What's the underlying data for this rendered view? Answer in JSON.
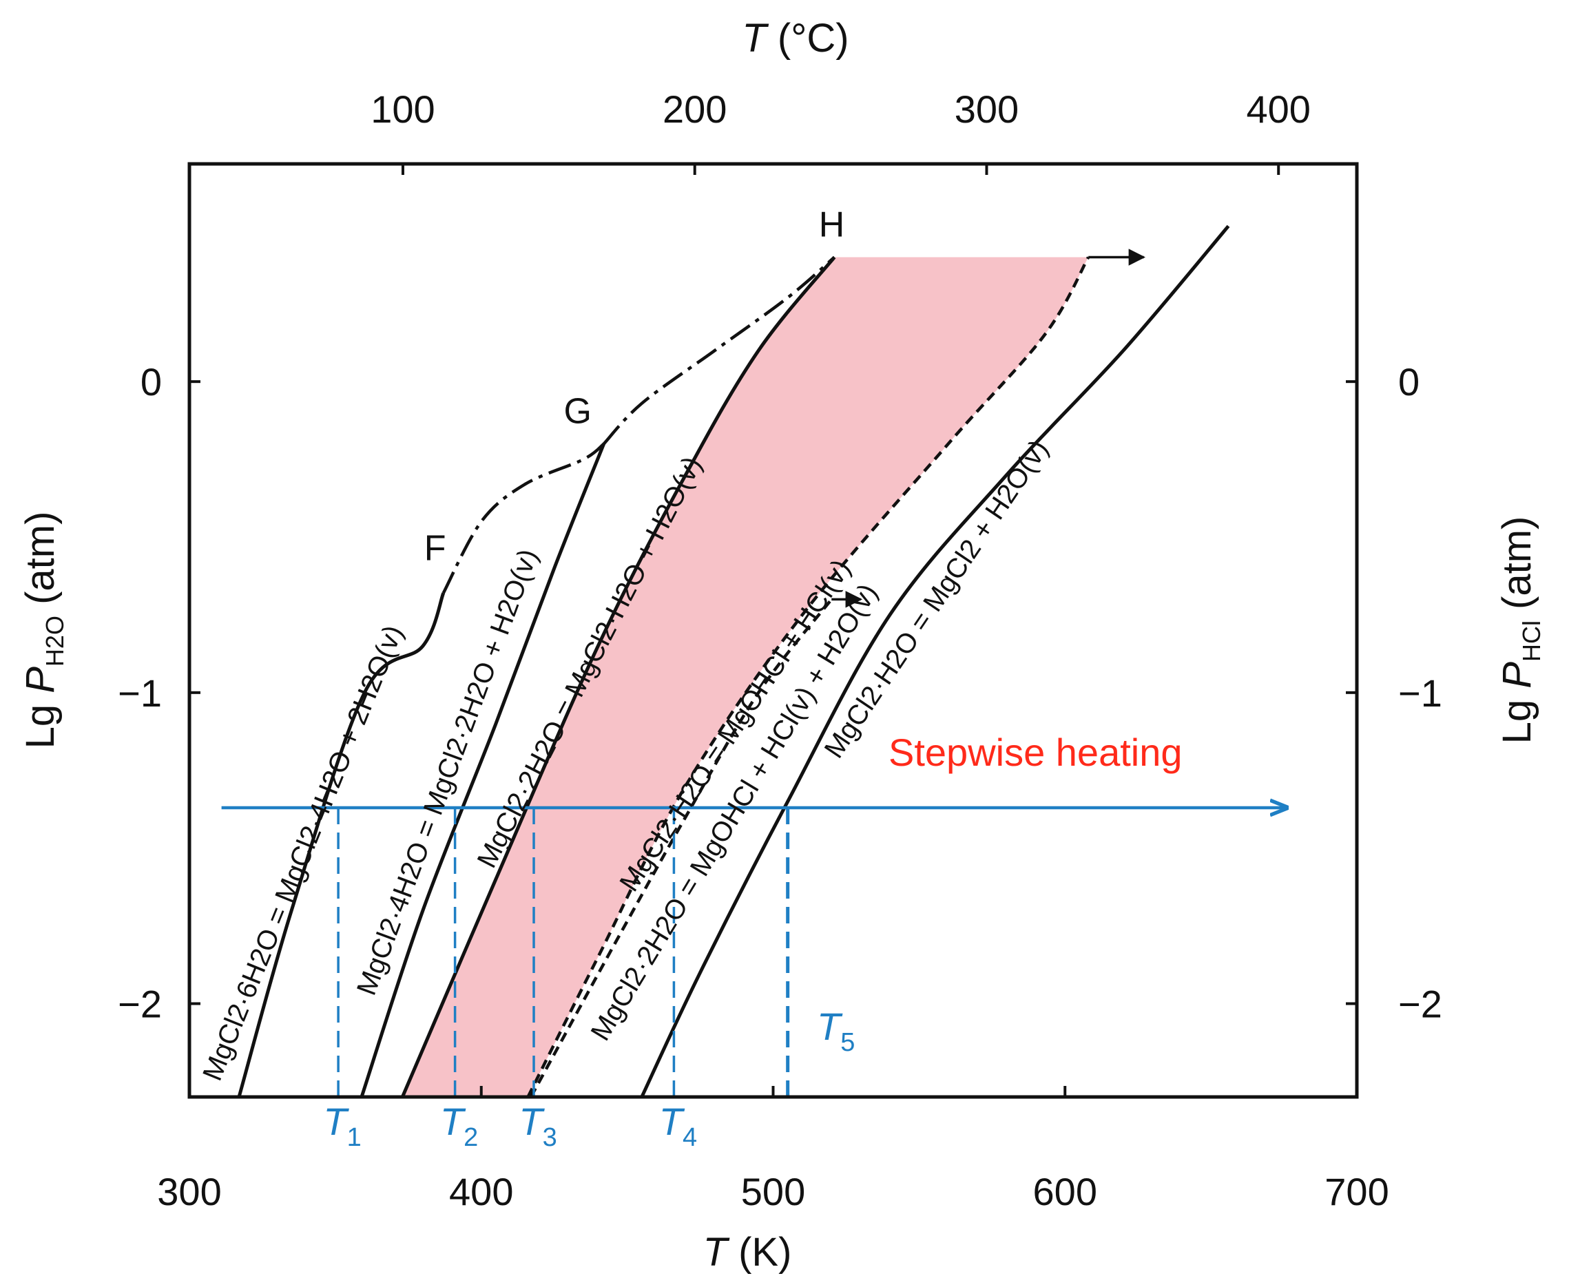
{
  "chart_data": {
    "type": "line",
    "x_bottom": {
      "label_var": "T",
      "label_unit": " (K)",
      "range": [
        300,
        700
      ],
      "ticks": [
        300,
        400,
        500,
        600,
        700
      ]
    },
    "x_top": {
      "label_var": "T",
      "label_unit": " (°C)",
      "ticks": [
        100,
        200,
        300,
        400
      ]
    },
    "y_left": {
      "label_prefix": "Lg ",
      "label_var": "P",
      "label_sub": "H2O",
      "label_unit": " (atm)",
      "range": [
        -2.3,
        0.7
      ],
      "ticks": [
        0,
        -1,
        -2
      ],
      "tick_labels": [
        "0",
        "−1",
        "−2"
      ]
    },
    "y_right": {
      "label_prefix": "Lg ",
      "label_var": "P",
      "label_sub": "HCl",
      "label_unit": " (atm)",
      "ticks": [
        0,
        -1,
        -2
      ],
      "tick_labels": [
        "0",
        "−1",
        "−2"
      ]
    },
    "series": [
      {
        "name": "MgCl2·6H2O = MgCl2·4H2O + 2H2O(v)",
        "style": "solid",
        "points": [
          [
            317,
            -2.3
          ],
          [
            335,
            -1.7
          ],
          [
            360,
            -1.0
          ],
          [
            380,
            -0.85
          ],
          [
            387,
            -0.68
          ]
        ]
      },
      {
        "name": "MgCl2·4H2O = MgCl2·2H2O + H2O(v)",
        "style": "solid",
        "points": [
          [
            359,
            -2.3
          ],
          [
            380,
            -1.7
          ],
          [
            405,
            -1.1
          ],
          [
            425,
            -0.6
          ],
          [
            442,
            -0.2
          ]
        ]
      },
      {
        "name": "MgCl2·2H2O = MgCl2·H2O + H2O(v)",
        "style": "solid",
        "points": [
          [
            373,
            -2.3
          ],
          [
            405,
            -1.6
          ],
          [
            440,
            -0.85
          ],
          [
            470,
            -0.3
          ],
          [
            495,
            0.1
          ],
          [
            521,
            0.4
          ]
        ]
      },
      {
        "name": "MgCl2·H2O = MgOHCl + HCl(v)",
        "style": "dashed",
        "points": [
          [
            416,
            -2.3
          ],
          [
            440,
            -1.85
          ],
          [
            470,
            -1.3
          ],
          [
            510,
            -0.75
          ],
          [
            560,
            -0.2
          ],
          [
            593,
            0.15
          ],
          [
            608,
            0.4
          ]
        ]
      },
      {
        "name": "MgCl2·2H2O = MgOHCl + HCl(v) + H2O(v)",
        "style": "dashed",
        "points": [
          [
            417,
            -2.3
          ],
          [
            445,
            -1.82
          ],
          [
            470,
            -1.4
          ],
          [
            495,
            -1.0
          ],
          [
            520,
            -0.7
          ]
        ]
      },
      {
        "name": "MgCl2·H2O = MgCl2 + H2O(v)",
        "style": "solid",
        "points": [
          [
            455,
            -2.3
          ],
          [
            475,
            -1.9
          ],
          [
            505,
            -1.35
          ],
          [
            540,
            -0.75
          ],
          [
            580,
            -0.3
          ],
          [
            620,
            0.1
          ],
          [
            656,
            0.5
          ]
        ]
      },
      {
        "name": "F-G boundary",
        "style": "dashdot",
        "points": [
          [
            387,
            -0.68
          ],
          [
            400,
            -0.45
          ],
          [
            415,
            -0.33
          ],
          [
            435,
            -0.25
          ],
          [
            442,
            -0.2
          ]
        ]
      },
      {
        "name": "G-H boundary",
        "style": "dashdot",
        "points": [
          [
            442,
            -0.2
          ],
          [
            455,
            -0.07
          ],
          [
            480,
            0.1
          ],
          [
            505,
            0.27
          ],
          [
            521,
            0.4
          ]
        ]
      }
    ],
    "points": [
      {
        "name": "F",
        "x": 387,
        "y": -0.68
      },
      {
        "name": "G",
        "x": 442,
        "y": -0.2
      },
      {
        "name": "H",
        "x": 521,
        "y": 0.4
      }
    ],
    "shaded_region": {
      "between": [
        "MgCl2·2H2O = MgCl2·H2O + H2O(v)",
        "MgCl2·H2O = MgOHCl + HCl(v)"
      ],
      "color": "#f7c2c8"
    },
    "arrows": [
      {
        "from": [
          608,
          0.4
        ],
        "to": [
          627,
          0.4
        ]
      },
      {
        "from": [
          520,
          -0.7
        ],
        "to": [
          530,
          -0.7
        ]
      }
    ],
    "heating_line": {
      "y": -1.37,
      "x_start": 311,
      "x_end": 676,
      "color": "#1f7fc4",
      "label": "Stepwise heating",
      "label_color": "#ff2a1a"
    },
    "temperatures": [
      {
        "symbol": "T",
        "sub": "1",
        "x": 351
      },
      {
        "symbol": "T",
        "sub": "2",
        "x": 391
      },
      {
        "symbol": "T",
        "sub": "3",
        "x": 418
      },
      {
        "symbol": "T",
        "sub": "4",
        "x": 466
      },
      {
        "symbol": "T",
        "sub": "5",
        "x": 505
      }
    ],
    "colors": {
      "curve": "#111111",
      "marker": "#1f7fc4",
      "shade": "#f7c2c8"
    }
  }
}
